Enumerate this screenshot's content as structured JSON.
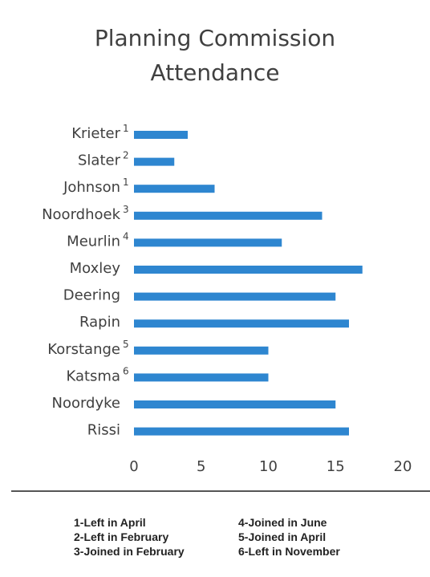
{
  "chart_data": {
    "type": "bar",
    "orientation": "horizontal",
    "title": [
      "Planning Commission",
      "Attendance"
    ],
    "categories": [
      {
        "name": "Krieter",
        "note": "1"
      },
      {
        "name": "Slater",
        "note": "2"
      },
      {
        "name": "Johnson",
        "note": "1"
      },
      {
        "name": "Noordhoek",
        "note": "3"
      },
      {
        "name": "Meurlin",
        "note": "4"
      },
      {
        "name": "Moxley",
        "note": ""
      },
      {
        "name": "Deering",
        "note": ""
      },
      {
        "name": "Rapin",
        "note": ""
      },
      {
        "name": "Korstange",
        "note": "5"
      },
      {
        "name": "Katsma",
        "note": "6"
      },
      {
        "name": "Noordyke",
        "note": ""
      },
      {
        "name": "Rissi",
        "note": ""
      }
    ],
    "values": [
      4,
      3,
      6,
      14,
      11,
      17,
      15,
      16,
      10,
      10,
      15,
      16
    ],
    "xlim": [
      0,
      20
    ],
    "xticks": [
      "0",
      "5",
      "10",
      "15",
      "20"
    ],
    "bar_color": "#2e86d0",
    "grid": false,
    "legend": false
  },
  "footnotes": [
    "1-Left in April",
    "4-Joined in June",
    "2-Left in February",
    "5-Joined in April",
    "3-Joined in February",
    "6-Left in November"
  ]
}
